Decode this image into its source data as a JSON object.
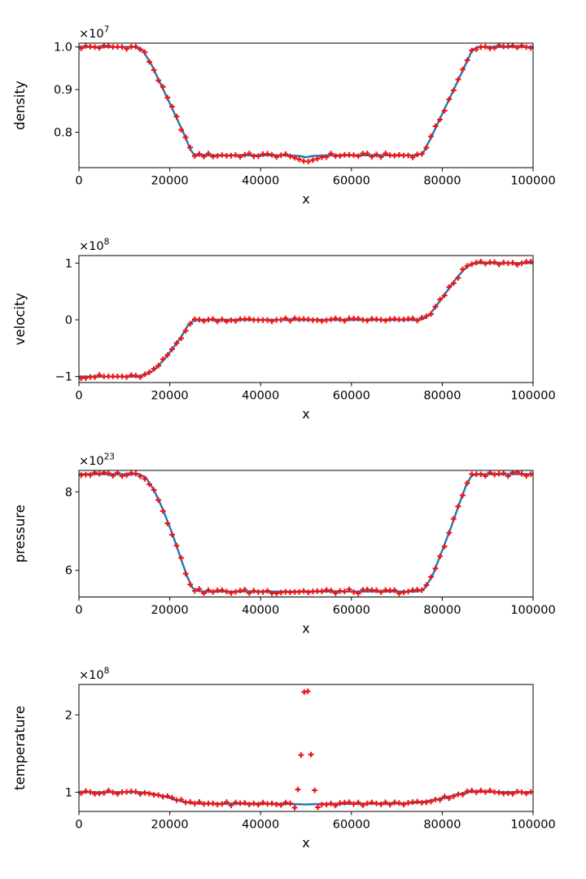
{
  "figure": {
    "background": "#ffffff",
    "line_color": "#1f77b4",
    "marker_color": "#f01212",
    "axis_color": "#000000",
    "marker_glyph": "plus"
  },
  "chart_data": [
    {
      "id": "density",
      "type": "line",
      "title": "",
      "xlabel": "x",
      "ylabel": "density",
      "offset_base": "×10",
      "offset_exp": "7",
      "xlim": [
        0,
        100000
      ],
      "ylim": [
        0.717,
        1.009
      ],
      "xticks": [
        0,
        20000,
        40000,
        60000,
        80000,
        100000
      ],
      "xtick_labels": [
        "0",
        "20000",
        "40000",
        "60000",
        "80000",
        "100000"
      ],
      "yticks": [
        0.8,
        0.9,
        1.0
      ],
      "ytick_labels": [
        "0.8",
        "0.9",
        "1.0"
      ],
      "grid": false,
      "legend": "none",
      "line_points": [
        [
          0,
          1.0
        ],
        [
          12500,
          1.0
        ],
        [
          14000,
          0.993
        ],
        [
          16000,
          0.958
        ],
        [
          18000,
          0.913
        ],
        [
          20000,
          0.868
        ],
        [
          22000,
          0.822
        ],
        [
          23500,
          0.787
        ],
        [
          24500,
          0.76
        ],
        [
          25400,
          0.747
        ],
        [
          28000,
          0.746
        ],
        [
          45000,
          0.746
        ],
        [
          48500,
          0.7445
        ],
        [
          50000,
          0.7415
        ],
        [
          51500,
          0.7445
        ],
        [
          55000,
          0.746
        ],
        [
          74500,
          0.746
        ],
        [
          75800,
          0.752
        ],
        [
          77500,
          0.787
        ],
        [
          79500,
          0.832
        ],
        [
          81500,
          0.877
        ],
        [
          83500,
          0.922
        ],
        [
          85300,
          0.963
        ],
        [
          86600,
          0.993
        ],
        [
          87800,
          1.0
        ],
        [
          100000,
          1.0
        ]
      ],
      "markers": {
        "start": 500,
        "step": 1000,
        "count": 100,
        "jitter": 0.0048,
        "gap": [
          46000,
          54000
        ],
        "outliers": [
          [
            46500,
            0.7435
          ],
          [
            47500,
            0.74
          ],
          [
            48500,
            0.7365
          ],
          [
            49500,
            0.7325
          ],
          [
            50500,
            0.7315
          ],
          [
            51500,
            0.735
          ],
          [
            52500,
            0.738
          ],
          [
            53500,
            0.7415
          ]
        ]
      }
    },
    {
      "id": "velocity",
      "type": "line",
      "title": "",
      "xlabel": "x",
      "ylabel": "velocity",
      "offset_base": "×10",
      "offset_exp": "8",
      "xlim": [
        0,
        100000
      ],
      "ylim": [
        -1.105,
        1.133
      ],
      "xticks": [
        0,
        20000,
        40000,
        60000,
        80000,
        100000
      ],
      "xtick_labels": [
        "0",
        "20000",
        "40000",
        "60000",
        "80000",
        "100000"
      ],
      "yticks": [
        -1,
        0,
        1
      ],
      "ytick_labels": [
        "−1",
        "0",
        "1"
      ],
      "grid": false,
      "legend": "none",
      "line_points": [
        [
          0,
          -1.0
        ],
        [
          13000,
          -1.0
        ],
        [
          14500,
          -0.975
        ],
        [
          16500,
          -0.89
        ],
        [
          18500,
          -0.72
        ],
        [
          20500,
          -0.52
        ],
        [
          22500,
          -0.3
        ],
        [
          24000,
          -0.1
        ],
        [
          25200,
          -0.015
        ],
        [
          26500,
          0.0
        ],
        [
          74600,
          0.0
        ],
        [
          75800,
          0.015
        ],
        [
          77300,
          0.1
        ],
        [
          79000,
          0.28
        ],
        [
          81000,
          0.5
        ],
        [
          83000,
          0.72
        ],
        [
          84800,
          0.89
        ],
        [
          86200,
          0.975
        ],
        [
          87400,
          1.0
        ],
        [
          100000,
          1.0
        ]
      ],
      "markers": {
        "start": 500,
        "step": 1000,
        "count": 100,
        "jitter": 0.03,
        "gap": null,
        "outliers": []
      }
    },
    {
      "id": "pressure",
      "type": "line",
      "title": "",
      "xlabel": "x",
      "ylabel": "pressure",
      "offset_base": "×10",
      "offset_exp": "23",
      "xlim": [
        0,
        100000
      ],
      "ylim": [
        5.32,
        8.546
      ],
      "xticks": [
        0,
        20000,
        40000,
        60000,
        80000,
        100000
      ],
      "xtick_labels": [
        "0",
        "20000",
        "40000",
        "60000",
        "80000",
        "100000"
      ],
      "yticks": [
        6,
        8
      ],
      "ytick_labels": [
        "6",
        "8"
      ],
      "grid": false,
      "legend": "none",
      "line_points": [
        [
          0,
          8.45
        ],
        [
          13200,
          8.45
        ],
        [
          14700,
          8.37
        ],
        [
          16500,
          8.05
        ],
        [
          18500,
          7.55
        ],
        [
          20500,
          6.95
        ],
        [
          22300,
          6.35
        ],
        [
          23800,
          5.85
        ],
        [
          25000,
          5.55
        ],
        [
          26300,
          5.47
        ],
        [
          28000,
          5.46
        ],
        [
          74700,
          5.46
        ],
        [
          76000,
          5.53
        ],
        [
          77800,
          5.85
        ],
        [
          79800,
          6.45
        ],
        [
          81800,
          7.05
        ],
        [
          83600,
          7.65
        ],
        [
          85200,
          8.15
        ],
        [
          86400,
          8.4
        ],
        [
          87400,
          8.45
        ],
        [
          100000,
          8.45
        ]
      ],
      "markers": {
        "start": 500,
        "step": 1000,
        "count": 100,
        "jitter": 0.055,
        "gap": null,
        "outliers": []
      }
    },
    {
      "id": "temperature",
      "type": "line",
      "title": "",
      "xlabel": "x",
      "ylabel": "temperature",
      "offset_base": "×10",
      "offset_exp": "8",
      "xlim": [
        0,
        100000
      ],
      "ylim": [
        0.751,
        2.393
      ],
      "xticks": [
        0,
        20000,
        40000,
        60000,
        80000,
        100000
      ],
      "xtick_labels": [
        "0",
        "20000",
        "40000",
        "60000",
        "80000",
        "100000"
      ],
      "yticks": [
        1,
        2
      ],
      "ytick_labels": [
        "1",
        "2"
      ],
      "grid": false,
      "legend": "none",
      "line_points": [
        [
          0,
          1.0
        ],
        [
          13000,
          1.0
        ],
        [
          15000,
          0.993
        ],
        [
          17000,
          0.972
        ],
        [
          19000,
          0.942
        ],
        [
          21000,
          0.908
        ],
        [
          23000,
          0.876
        ],
        [
          24800,
          0.858
        ],
        [
          26500,
          0.852
        ],
        [
          40000,
          0.851
        ],
        [
          46000,
          0.849
        ],
        [
          50000,
          0.841
        ],
        [
          54000,
          0.849
        ],
        [
          62000,
          0.851
        ],
        [
          71000,
          0.854
        ],
        [
          74000,
          0.864
        ],
        [
          76500,
          0.882
        ],
        [
          78500,
          0.903
        ],
        [
          80500,
          0.928
        ],
        [
          82500,
          0.957
        ],
        [
          84500,
          0.985
        ],
        [
          86200,
          1.005
        ],
        [
          88000,
          1.01
        ],
        [
          90500,
          1.004
        ],
        [
          94000,
          1.0
        ],
        [
          100000,
          1.0
        ]
      ],
      "markers": {
        "start": 500,
        "step": 1000,
        "count": 100,
        "jitter": 0.022,
        "gap": [
          47000,
          53000
        ],
        "outliers": [
          [
            47500,
            0.8
          ],
          [
            48200,
            1.035
          ],
          [
            48900,
            1.48
          ],
          [
            49600,
            2.295
          ],
          [
            50400,
            2.305
          ],
          [
            51100,
            1.487
          ],
          [
            51900,
            1.025
          ],
          [
            52600,
            0.805
          ]
        ]
      }
    }
  ]
}
